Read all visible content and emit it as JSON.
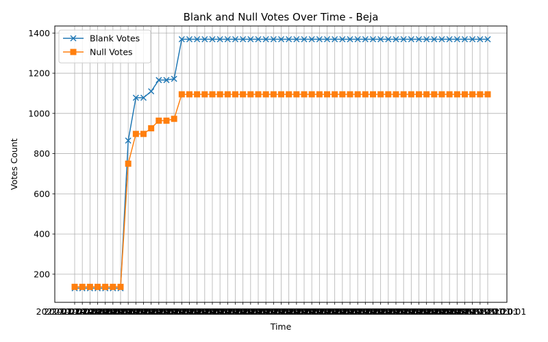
{
  "chart_data": {
    "type": "line",
    "title": "Blank and Null Votes Over Time - Beja",
    "xlabel": "Time",
    "ylabel": "Votes Count",
    "ylim": [
      60,
      1435
    ],
    "yticks": [
      200,
      400,
      600,
      800,
      1000,
      1200,
      1400
    ],
    "grid": true,
    "legend_position": "top-left",
    "x_tick_text": "2021-01-24 20:01",
    "x": [
      "t01",
      "t02",
      "t03",
      "t04",
      "t05",
      "t06",
      "t07",
      "t08",
      "t09",
      "t10",
      "t11",
      "t12",
      "t13",
      "t14",
      "t15",
      "t16",
      "t17",
      "t18",
      "t19",
      "t20",
      "t21",
      "t22",
      "t23",
      "t24",
      "t25",
      "t26",
      "t27",
      "t28",
      "t29",
      "t30",
      "t31",
      "t32",
      "t33",
      "t34",
      "t35",
      "t36",
      "t37",
      "t38",
      "t39",
      "t40",
      "t41",
      "t42",
      "t43",
      "t44",
      "t45",
      "t46",
      "t47",
      "t48",
      "t49",
      "t50",
      "t51",
      "t52",
      "t53",
      "t54",
      "t55"
    ],
    "series": [
      {
        "name": "Blank Votes",
        "color": "#1f77b4",
        "marker": "x",
        "values": [
          130,
          130,
          130,
          130,
          130,
          130,
          130,
          865,
          1078,
          1078,
          1110,
          1166,
          1166,
          1172,
          1369,
          1369,
          1369,
          1369,
          1369,
          1369,
          1369,
          1369,
          1369,
          1369,
          1369,
          1369,
          1369,
          1369,
          1369,
          1369,
          1369,
          1369,
          1369,
          1369,
          1369,
          1369,
          1369,
          1369,
          1369,
          1369,
          1369,
          1369,
          1369,
          1369,
          1369,
          1369,
          1369,
          1369,
          1369,
          1369,
          1369,
          1369,
          1369,
          1369,
          1369
        ]
      },
      {
        "name": "Null Votes",
        "color": "#ff7f0e",
        "marker": "s",
        "values": [
          137,
          137,
          137,
          137,
          137,
          137,
          137,
          750,
          898,
          898,
          926,
          964,
          964,
          973,
          1095,
          1095,
          1095,
          1095,
          1095,
          1095,
          1095,
          1095,
          1095,
          1095,
          1095,
          1095,
          1095,
          1095,
          1095,
          1095,
          1095,
          1095,
          1095,
          1095,
          1095,
          1095,
          1095,
          1095,
          1095,
          1095,
          1095,
          1095,
          1095,
          1095,
          1095,
          1095,
          1095,
          1095,
          1095,
          1095,
          1095,
          1095,
          1095,
          1095,
          1095
        ]
      }
    ]
  }
}
